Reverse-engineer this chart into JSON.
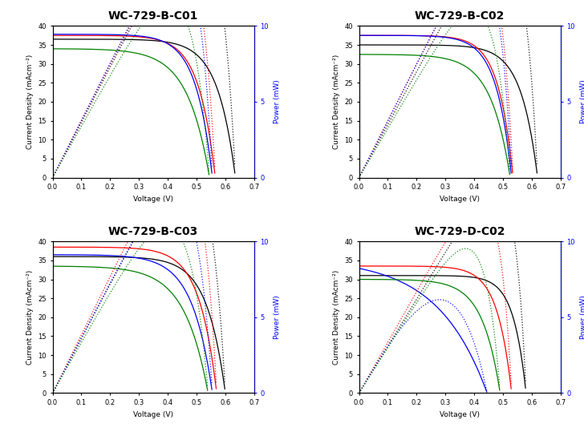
{
  "subplots": [
    {
      "title": "WC-729-B-C01",
      "curves": [
        {
          "color": "black",
          "Jsc": 36.5,
          "Voc": 0.635,
          "Jmp": 34.0,
          "Vmp": 0.47
        },
        {
          "color": "red",
          "Jsc": 37.5,
          "Voc": 0.565,
          "Jmp": 34.5,
          "Vmp": 0.42
        },
        {
          "color": "blue",
          "Jsc": 37.8,
          "Voc": 0.555,
          "Jmp": 34.8,
          "Vmp": 0.41
        },
        {
          "color": "green",
          "Jsc": 34.0,
          "Voc": 0.545,
          "Jmp": 29.0,
          "Vmp": 0.4
        }
      ],
      "ylim_iv": [
        0,
        40
      ],
      "ylim_p": [
        0,
        10
      ],
      "ylabel_left": "Current Density (mAcm⁻²)",
      "ylabel_right": "Power (mW)"
    },
    {
      "title": "WC-729-B-C02",
      "curves": [
        {
          "color": "black",
          "Jsc": 35.0,
          "Voc": 0.62,
          "Jmp": 32.0,
          "Vmp": 0.48
        },
        {
          "color": "red",
          "Jsc": 37.5,
          "Voc": 0.535,
          "Jmp": 33.5,
          "Vmp": 0.42
        },
        {
          "color": "blue",
          "Jsc": 37.5,
          "Voc": 0.53,
          "Jmp": 33.5,
          "Vmp": 0.41
        },
        {
          "color": "green",
          "Jsc": 32.5,
          "Voc": 0.525,
          "Jmp": 27.5,
          "Vmp": 0.4
        }
      ],
      "ylim_iv": [
        0,
        40
      ],
      "ylim_p": [
        0,
        10
      ],
      "ylabel_left": "Current Density (mAcm⁻²)",
      "ylabel_right": "Power (mW)"
    },
    {
      "title": "WC-729-B-C03",
      "curves": [
        {
          "color": "black",
          "Jsc": 36.0,
          "Voc": 0.6,
          "Jmp": 32.0,
          "Vmp": 0.46
        },
        {
          "color": "red",
          "Jsc": 38.5,
          "Voc": 0.57,
          "Jmp": 34.0,
          "Vmp": 0.44
        },
        {
          "color": "blue",
          "Jsc": 36.5,
          "Voc": 0.555,
          "Jmp": 29.5,
          "Vmp": 0.44
        },
        {
          "color": "green",
          "Jsc": 33.5,
          "Voc": 0.54,
          "Jmp": 27.5,
          "Vmp": 0.4
        }
      ],
      "ylim_iv": [
        0,
        40
      ],
      "ylim_p": [
        0,
        10
      ],
      "ylabel_left": "Current Density (mAcm⁻²)",
      "ylabel_right": "Power (mW)"
    },
    {
      "title": "WC-729-D-C02",
      "curves": [
        {
          "color": "black",
          "Jsc": 31.0,
          "Voc": 0.58,
          "Jmp": 28.5,
          "Vmp": 0.47
        },
        {
          "color": "red",
          "Jsc": 33.5,
          "Voc": 0.53,
          "Jmp": 29.0,
          "Vmp": 0.43
        },
        {
          "color": "blue",
          "Jsc": 35.5,
          "Voc": 0.445,
          "Jmp": 22.0,
          "Vmp": 0.28
        },
        {
          "color": "green",
          "Jsc": 30.0,
          "Voc": 0.49,
          "Jmp": 25.0,
          "Vmp": 0.38
        }
      ],
      "ylim_iv": [
        0,
        40
      ],
      "ylim_p": [
        0,
        10
      ],
      "ylabel_left": "Current Density (mAcm⁻²)",
      "ylabel_right": "Power (mW)"
    }
  ],
  "xlabel": "Voltage (V)",
  "xlim": [
    0.0,
    0.7
  ],
  "xticks": [
    0.0,
    0.1,
    0.2,
    0.3,
    0.4,
    0.5,
    0.6,
    0.7
  ],
  "title_fontsize": 10,
  "axis_fontsize": 6.5,
  "tick_fontsize": 6,
  "background_color": "#ffffff",
  "line_width": 0.9
}
